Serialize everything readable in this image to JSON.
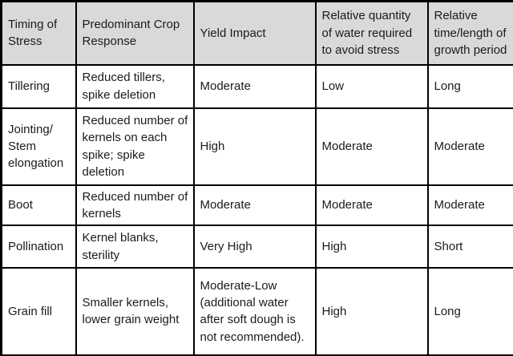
{
  "table": {
    "columns": [
      "Timing of Stress",
      "Predominant Crop Response",
      "Yield Impact",
      "Relative quantity of water required to avoid stress",
      "Relative time/length of growth period"
    ],
    "rows": [
      [
        "Tillering",
        "Reduced tillers, spike deletion",
        "Moderate",
        "Low",
        "Long"
      ],
      [
        "Jointing/ Stem elongation",
        "Reduced number of kernels on each spike; spike deletion",
        "High",
        "Moderate",
        "Moderate"
      ],
      [
        "Boot",
        "Reduced number of kernels",
        "Moderate",
        "Moderate",
        "Moderate"
      ],
      [
        "Pollination",
        "Kernel blanks, sterility",
        "Very High",
        "High",
        "Short"
      ],
      [
        "Grain fill",
        "Smaller kernels, lower grain weight",
        "Moderate-Low (additional water after soft dough is not recommended).",
        "High",
        "Long"
      ]
    ]
  },
  "colors": {
    "header_bg": "#d9d9d9",
    "border": "#000000",
    "body_bg": "#ffffff",
    "text": "#1b1b1b"
  }
}
